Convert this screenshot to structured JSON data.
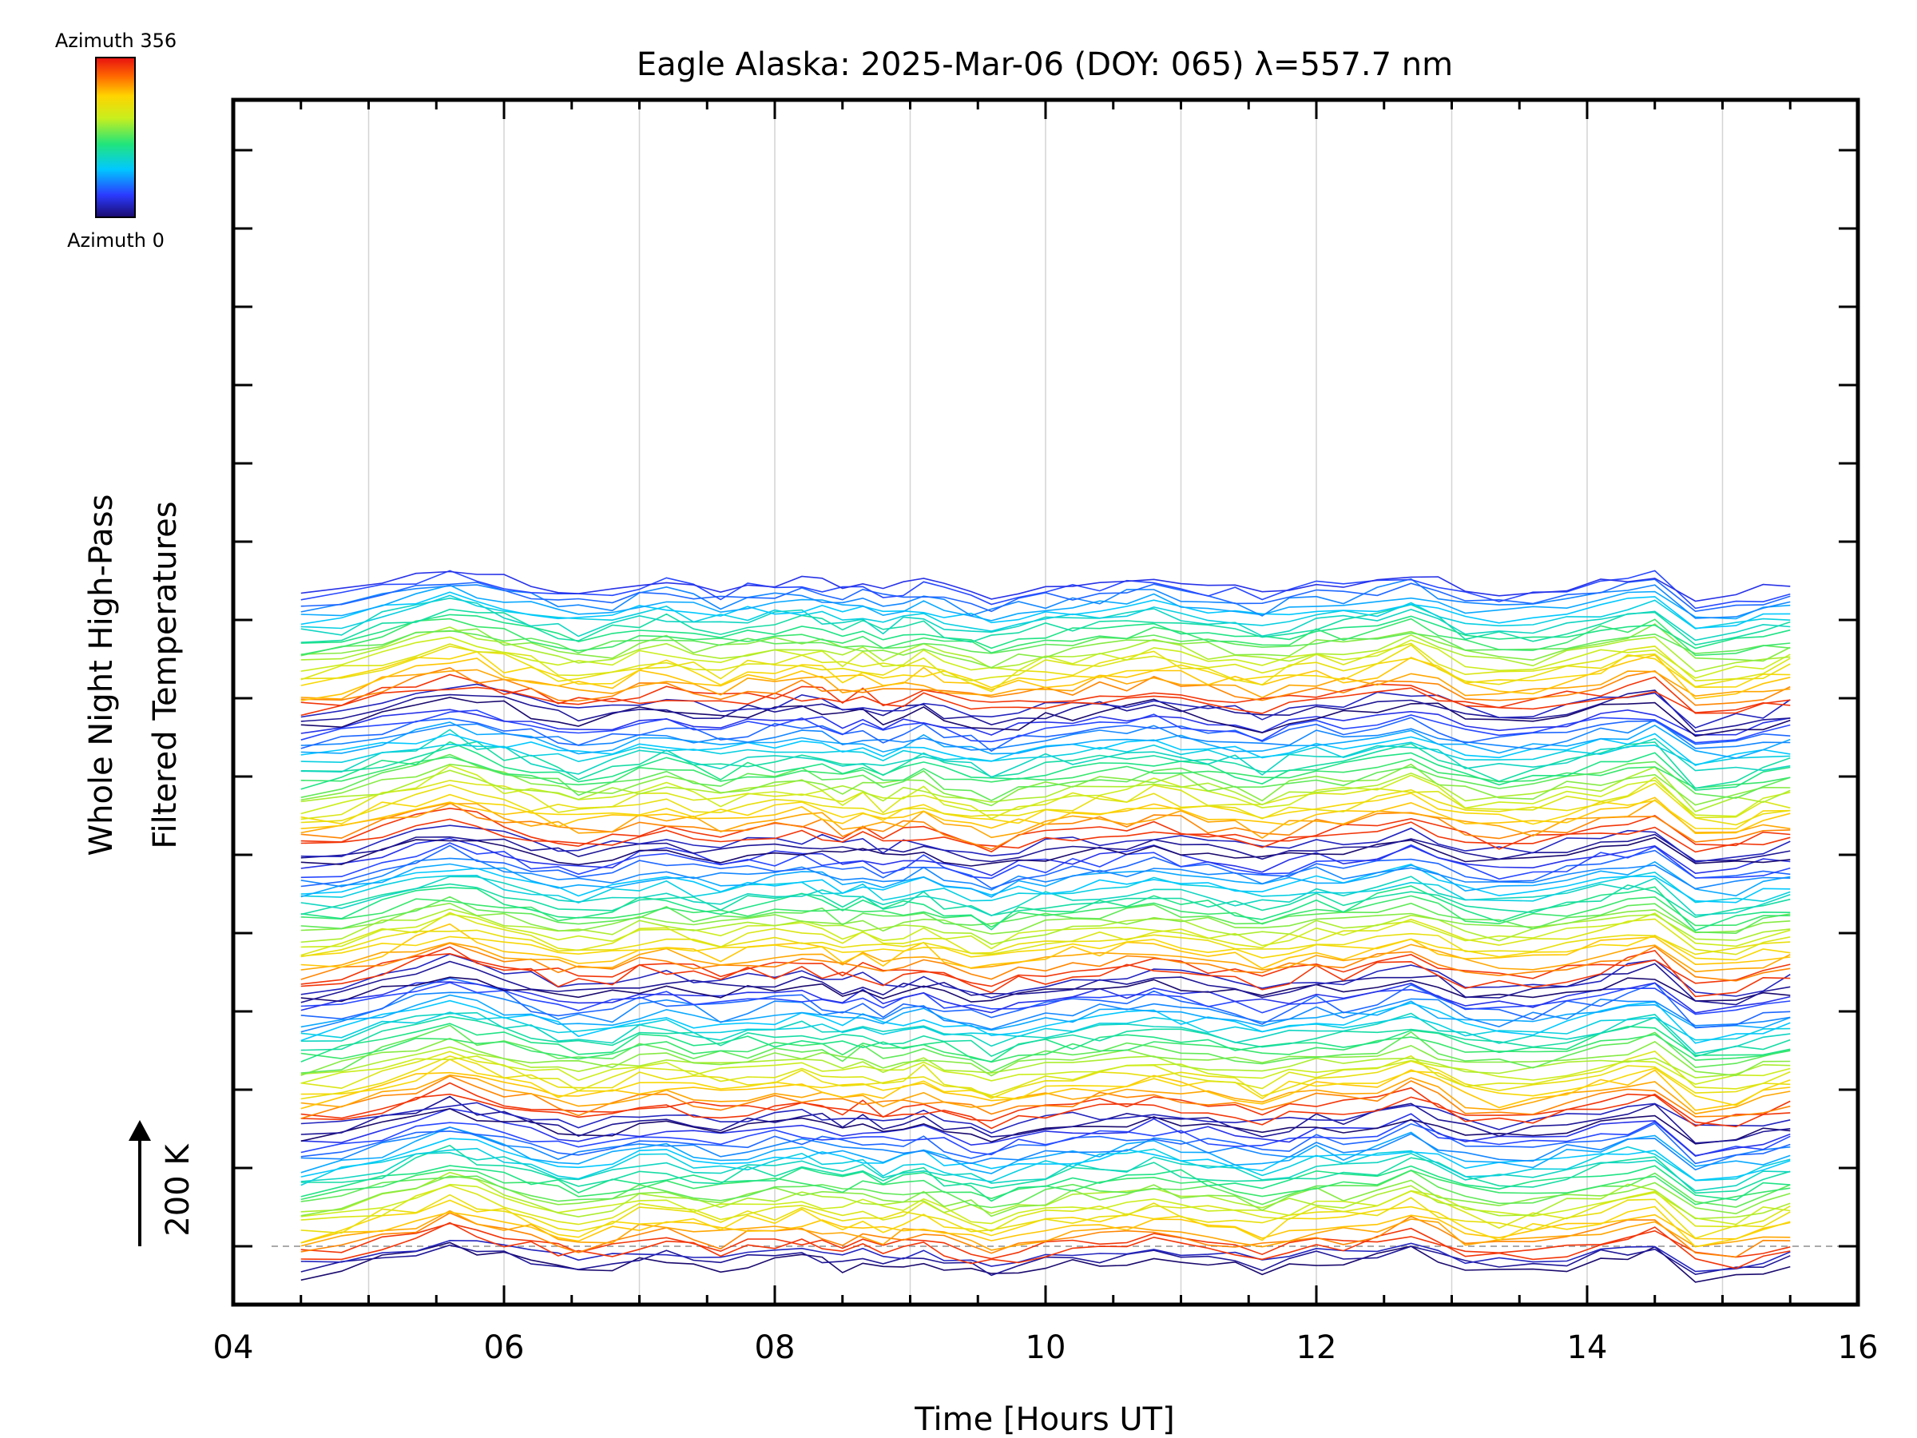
{
  "chart_data": {
    "type": "line",
    "title": "Eagle Alaska: 2025-Mar-06 (DOY: 065) λ=557.7 nm",
    "xlabel": "Time [Hours UT]",
    "ylabel": [
      "Whole Night High-Pass",
      "Filtered Temperatures"
    ],
    "xlim": [
      4,
      16
    ],
    "x_ticks": [
      "04",
      "06",
      "08",
      "10",
      "12",
      "14",
      "16"
    ],
    "scale_arrow_label": "200 K",
    "colorbar": {
      "top_label": "Azimuth 356",
      "bottom_label": "Azimuth 0",
      "colormap": "rainbow",
      "stops": [
        "#1a0a6e",
        "#2b3bff",
        "#00c8ff",
        "#22e57a",
        "#c8ef1e",
        "#ffd400",
        "#ff6a00",
        "#e81010"
      ]
    },
    "grid": true,
    "series_count": 130,
    "x": [
      4.5,
      4.8,
      5.1,
      5.35,
      5.6,
      5.8,
      6.0,
      6.2,
      6.4,
      6.55,
      6.8,
      7.0,
      7.2,
      7.4,
      7.6,
      7.8,
      8.0,
      8.2,
      8.35,
      8.5,
      8.65,
      8.8,
      8.95,
      9.1,
      9.25,
      9.45,
      9.6,
      9.8,
      10.0,
      10.2,
      10.4,
      10.6,
      10.8,
      11.0,
      11.2,
      11.4,
      11.6,
      11.8,
      12.0,
      12.2,
      12.45,
      12.7,
      12.9,
      13.1,
      13.35,
      13.6,
      13.85,
      14.1,
      14.3,
      14.5,
      14.8,
      15.1,
      15.3,
      15.5
    ],
    "series_common_shape": [
      -0.5,
      -0.3,
      0.2,
      0.55,
      0.95,
      0.7,
      0.4,
      0.15,
      -0.15,
      -0.3,
      -0.1,
      0.2,
      0.35,
      0.05,
      -0.1,
      0.1,
      0.2,
      0.3,
      0.2,
      -0.05,
      0.15,
      -0.15,
      0.05,
      0.25,
      -0.1,
      -0.35,
      -0.55,
      -0.25,
      -0.05,
      0.1,
      0.2,
      0.25,
      0.45,
      0.25,
      0.05,
      -0.1,
      -0.35,
      -0.05,
      0.2,
      0.1,
      0.35,
      0.7,
      0.3,
      -0.2,
      -0.35,
      -0.25,
      0.0,
      0.3,
      0.55,
      0.75,
      -0.65,
      -0.5,
      -0.2,
      0.05
    ]
  }
}
